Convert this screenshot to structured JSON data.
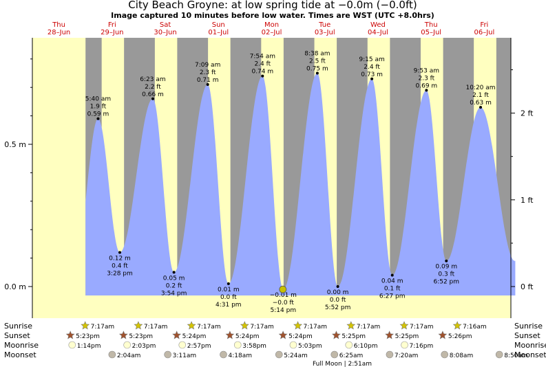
{
  "header": {
    "title": "City Beach Groyne: at low  spring tide at −0.0m (−0.0ft)",
    "subtitle": "Image captured 10 minutes before low water. Times are WST (UTC +8.0hrs)"
  },
  "colors": {
    "day": "#ffffc0",
    "night": "#999999",
    "tide": "#99aaff",
    "day_label": "#cc0000",
    "sun_star": "#d4c400",
    "sunset_star": "#a0522d",
    "moonrise": "#ffffd0",
    "moonset": "#c0b8a8",
    "marker": "#c8c000"
  },
  "days": [
    {
      "name": "Thu",
      "date": "28–Jun"
    },
    {
      "name": "Fri",
      "date": "29–Jun"
    },
    {
      "name": "Sat",
      "date": "30–Jun"
    },
    {
      "name": "Sun",
      "date": "01–Jul"
    },
    {
      "name": "Mon",
      "date": "02–Jul"
    },
    {
      "name": "Tue",
      "date": "03–Jul"
    },
    {
      "name": "Wed",
      "date": "04–Jul"
    },
    {
      "name": "Thu",
      "date": "05–Jul"
    },
    {
      "name": "Fri",
      "date": "06–Jul"
    }
  ],
  "chart_data": {
    "type": "area",
    "title": "City Beach Groyne: at low  spring tide at −0.0m (−0.0ft)",
    "y_left_ticks": [
      {
        "value": 0.0,
        "label": "0.0 m"
      },
      {
        "value": 0.5,
        "label": "0.5 m"
      }
    ],
    "y_right_ticks": [
      {
        "value": 0,
        "label": "0 ft"
      },
      {
        "value": 1,
        "label": "1 ft"
      },
      {
        "value": 2,
        "label": "2 ft"
      }
    ],
    "ylim_m": [
      -0.05,
      0.85
    ],
    "tides": [
      {
        "time": "5:40 am",
        "ft": "1.9 ft",
        "m": 0.59,
        "type": "high",
        "t": 29.667
      },
      {
        "time": "3:28 pm",
        "ft": "0.4 ft",
        "m": 0.12,
        "type": "low",
        "t": 39.467
      },
      {
        "time": "6:23 am",
        "ft": "2.2 ft",
        "m": 0.66,
        "type": "high",
        "t": 54.383
      },
      {
        "time": "3:54 pm",
        "ft": "0.2 ft",
        "m": 0.05,
        "type": "low",
        "t": 63.9
      },
      {
        "time": "7:09 am",
        "ft": "2.3 ft",
        "m": 0.71,
        "type": "high",
        "t": 79.15
      },
      {
        "time": "4:31 pm",
        "ft": "0.0 ft",
        "m": 0.01,
        "type": "low",
        "t": 88.517
      },
      {
        "time": "7:54 am",
        "ft": "2.4 ft",
        "m": 0.74,
        "type": "high",
        "t": 103.9
      },
      {
        "time": "5:14 pm",
        "ft": "−0.0 ft",
        "m": -0.01,
        "type": "low",
        "t": 113.233
      },
      {
        "time": "8:38 am",
        "ft": "2.5 ft",
        "m": 0.75,
        "type": "high",
        "t": 128.633
      },
      {
        "time": "5:52 pm",
        "ft": "0.0 ft",
        "m": 0.0,
        "type": "low",
        "t": 137.867
      },
      {
        "time": "9:15 am",
        "ft": "2.4 ft",
        "m": 0.73,
        "type": "high",
        "t": 153.25
      },
      {
        "time": "6:27 pm",
        "ft": "0.1 ft",
        "m": 0.04,
        "type": "low",
        "t": 162.45
      },
      {
        "time": "9:53 am",
        "ft": "2.3 ft",
        "m": 0.69,
        "type": "high",
        "t": 177.883
      },
      {
        "time": "6:52 pm",
        "ft": "0.3 ft",
        "m": 0.09,
        "type": "low",
        "t": 186.867
      },
      {
        "time": "10:20 am",
        "ft": "2.1 ft",
        "m": 0.63,
        "type": "high",
        "t": 202.333
      }
    ],
    "series_range_hours": [
      24.0,
      218.0
    ],
    "capture_marker": {
      "t": 113.067,
      "m": -0.01
    },
    "sunrise": [
      "7:17am",
      "7:17am",
      "7:17am",
      "7:17am",
      "7:17am",
      "7:17am",
      "7:17am",
      "7:16am"
    ],
    "sunset": [
      "5:23pm",
      "5:23pm",
      "5:24pm",
      "5:24pm",
      "5:24pm",
      "5:25pm",
      "5:25pm",
      "5:26pm"
    ],
    "moonrise": [
      "1:14pm",
      "2:03pm",
      "2:57pm",
      "3:58pm",
      "5:03pm",
      "6:10pm",
      "7:16pm"
    ],
    "moonset": [
      "2:04am",
      "3:11am",
      "4:18am",
      "5:24am",
      "6:25am",
      "7:20am",
      "8:08am",
      "8:50am"
    ],
    "moon_phase_note": "Full Moon | 2:51am"
  },
  "rows": {
    "sunrise": "Sunrise",
    "sunset": "Sunset",
    "moonrise": "Moonrise",
    "moonset": "Moonset"
  }
}
